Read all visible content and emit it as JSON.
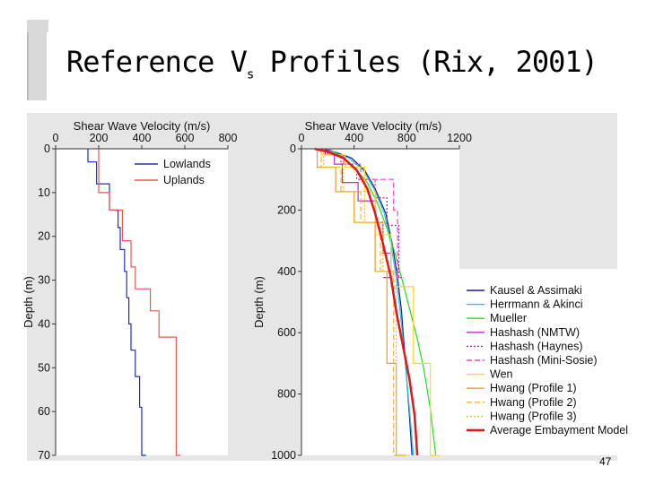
{
  "slide": {
    "title_main": "Reference V",
    "title_sub": "s",
    "title_rest": " Profiles (Rix, 2001)",
    "page_number": "47"
  },
  "chart_data": [
    {
      "type": "line",
      "title": "",
      "xlabel": "Shear Wave Velocity (m/s)",
      "ylabel": "Depth (m)",
      "xlim": [
        0,
        800
      ],
      "ylim": [
        0,
        70
      ],
      "y_inverted": true,
      "x_axis_position": "top",
      "x_ticks": [
        0,
        200,
        400,
        600,
        800
      ],
      "y_ticks": [
        0,
        10,
        20,
        30,
        40,
        50,
        60,
        70
      ],
      "legend_position": "top-right",
      "series": [
        {
          "name": "Lowlands",
          "color": "#1f2fbf",
          "step": true,
          "x": [
            150,
            190,
            250,
            290,
            300,
            320,
            330,
            340,
            350,
            370,
            390,
            400,
            420
          ],
          "y": [
            0,
            3,
            8,
            14,
            18,
            23,
            28,
            34,
            40,
            46,
            52,
            59,
            70
          ]
        },
        {
          "name": "Uplands",
          "color": "#e65a50",
          "step": true,
          "x": [
            200,
            250,
            310,
            350,
            370,
            440,
            480,
            560,
            580
          ],
          "y": [
            0,
            10,
            14,
            21,
            27,
            32,
            37,
            43,
            70
          ]
        }
      ]
    },
    {
      "type": "line",
      "title": "",
      "xlabel": "Shear Wave Velocity (m/s)",
      "ylabel": "Depth (m)",
      "xlim": [
        0,
        1200
      ],
      "ylim": [
        0,
        1000
      ],
      "y_inverted": true,
      "x_axis_position": "top",
      "x_ticks": [
        0,
        400,
        800,
        1200
      ],
      "y_ticks": [
        0,
        200,
        400,
        600,
        800,
        1000
      ],
      "legend_position": "bottom-right",
      "series": [
        {
          "name": "Kausel & Assimaki",
          "color": "#1a1a8c",
          "dash": "",
          "x": [
            150,
            250,
            380,
            480,
            560,
            640,
            690,
            730,
            760,
            780,
            800,
            820,
            840
          ],
          "y": [
            0,
            10,
            30,
            70,
            130,
            210,
            310,
            420,
            530,
            640,
            750,
            870,
            1000
          ]
        },
        {
          "name": "Herrmann & Akinci",
          "color": "#22c8e6",
          "dash": "",
          "x": [
            120,
            230,
            360,
            470,
            550,
            630,
            680,
            720,
            750,
            775,
            800,
            825,
            850
          ],
          "y": [
            0,
            10,
            30,
            70,
            130,
            210,
            310,
            420,
            530,
            640,
            750,
            870,
            1000
          ]
        },
        {
          "name": "Mueller",
          "color": "#22dd22",
          "dash": "",
          "x": [
            200,
            290,
            400,
            500,
            580,
            650,
            710,
            760,
            820,
            880,
            930,
            980,
            1020
          ],
          "y": [
            0,
            20,
            60,
            110,
            180,
            260,
            340,
            420,
            520,
            620,
            720,
            850,
            1000
          ]
        },
        {
          "name": "Hashash (NMTW)",
          "color": "#cc22cc",
          "dash": "",
          "step": true,
          "x": [
            180,
            250,
            310,
            430,
            560,
            620,
            680,
            620
          ],
          "y": [
            0,
            20,
            50,
            110,
            170,
            240,
            340,
            420
          ]
        },
        {
          "name": "Hashash (Haynes)",
          "color": "#aa22aa",
          "dash": "2,2",
          "step": true,
          "x": [
            200,
            300,
            420,
            560,
            650,
            740,
            780
          ],
          "y": [
            0,
            20,
            50,
            100,
            160,
            250,
            420
          ]
        },
        {
          "name": "Hashash (Mini-Sosie)",
          "color": "#ee44cc",
          "dash": "6,3",
          "step": true,
          "x": [
            220,
            320,
            450,
            700,
            730,
            760
          ],
          "y": [
            0,
            20,
            50,
            100,
            200,
            420
          ]
        },
        {
          "name": "Wen",
          "color": "#ffd23c",
          "dash": "",
          "step": true,
          "x": [
            150,
            330,
            480,
            560,
            680,
            850,
            980,
            1050
          ],
          "y": [
            0,
            20,
            60,
            140,
            280,
            450,
            700,
            1000
          ]
        },
        {
          "name": "Hwang (Profile 1)",
          "color": "#f0a020",
          "dash": "",
          "step": true,
          "x": [
            120,
            260,
            400,
            560,
            650,
            720,
            760
          ],
          "y": [
            0,
            60,
            140,
            240,
            400,
            700,
            1000
          ]
        },
        {
          "name": "Hwang (Profile 2)",
          "color": "#f5b040",
          "dash": "6,3",
          "step": true,
          "x": [
            150,
            300,
            450,
            600,
            700,
            800
          ],
          "y": [
            0,
            60,
            140,
            240,
            400,
            1000
          ]
        },
        {
          "name": "Hwang (Profile 3)",
          "color": "#e0c030",
          "dash": "2,2",
          "step": true,
          "x": [
            170,
            320,
            480,
            620,
            720,
            820
          ],
          "y": [
            0,
            60,
            140,
            240,
            400,
            1000
          ]
        },
        {
          "name": "Average Embayment Model",
          "color": "#e01818",
          "dash": "",
          "x": [
            100,
            200,
            320,
            420,
            500,
            560,
            620,
            680,
            720,
            770,
            820,
            860,
            880
          ],
          "y": [
            0,
            10,
            30,
            70,
            130,
            210,
            310,
            420,
            530,
            640,
            750,
            870,
            1000
          ]
        }
      ]
    }
  ]
}
